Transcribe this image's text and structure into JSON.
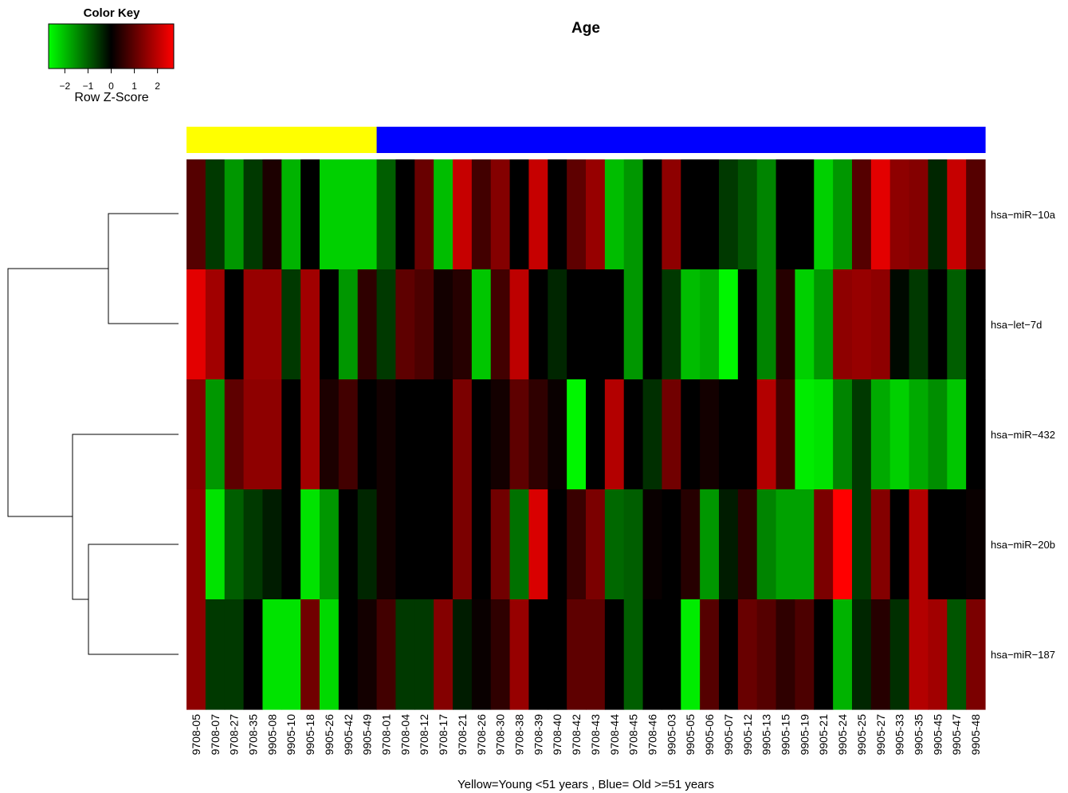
{
  "chart_data": {
    "type": "heatmap",
    "title": "Age",
    "xlabel": "Yellow=Young <51 years , Blue= Old >=51 years",
    "color_key": {
      "title": "Color Key",
      "label": "Row Z-Score",
      "range": [
        -2.7,
        2.7
      ],
      "ticks": [
        -2,
        -1,
        0,
        1,
        2
      ],
      "tick_labels": [
        "−2",
        "−1",
        "0",
        "1",
        "2"
      ],
      "low_color": "#00ff00",
      "mid_color": "#000000",
      "high_color": "#ff0000"
    },
    "group_colors": {
      "young": "#ffff00",
      "old": "#0000ff"
    },
    "columns": [
      "9708-05",
      "9708-07",
      "9708-27",
      "9708-35",
      "9905-08",
      "9905-10",
      "9905-18",
      "9905-26",
      "9905-42",
      "9905-49",
      "9708-01",
      "9708-04",
      "9708-12",
      "9708-17",
      "9708-21",
      "9708-26",
      "9708-30",
      "9708-38",
      "9708-39",
      "9708-40",
      "9708-42",
      "9708-43",
      "9708-44",
      "9708-45",
      "9708-46",
      "9905-03",
      "9905-05",
      "9905-06",
      "9905-07",
      "9905-12",
      "9905-13",
      "9905-15",
      "9905-19",
      "9905-21",
      "9905-24",
      "9905-25",
      "9905-27",
      "9905-33",
      "9905-35",
      "9905-45",
      "9905-47",
      "9905-48"
    ],
    "column_groups": [
      "young",
      "young",
      "young",
      "young",
      "young",
      "young",
      "young",
      "young",
      "young",
      "young",
      "old",
      "old",
      "old",
      "old",
      "old",
      "old",
      "old",
      "old",
      "old",
      "old",
      "old",
      "old",
      "old",
      "old",
      "old",
      "old",
      "old",
      "old",
      "old",
      "old",
      "old",
      "old",
      "old",
      "old",
      "old",
      "old",
      "old",
      "old",
      "old",
      "old",
      "old",
      "old"
    ],
    "rows": [
      "hsa−miR−10a",
      "hsa−let−7d",
      "hsa−miR−432",
      "hsa−miR−20b",
      "hsa−miR−187"
    ],
    "values": [
      [
        0.9,
        -0.6,
        -1.6,
        -0.6,
        0.3,
        -1.9,
        0.0,
        -2.2,
        -2.2,
        -2.2,
        -1.0,
        0.0,
        1.1,
        -2.0,
        2.1,
        0.7,
        1.4,
        0.0,
        2.1,
        0.0,
        1.0,
        1.6,
        -2.0,
        -1.6,
        0.0,
        1.5,
        0.0,
        0.0,
        -0.6,
        -0.9,
        -1.4,
        0.0,
        0.0,
        -2.2,
        -1.6,
        0.9,
        2.4,
        1.5,
        1.4,
        -0.4,
        2.1,
        0.9
      ],
      [
        2.4,
        1.7,
        0.0,
        1.6,
        1.6,
        -0.6,
        1.7,
        0.0,
        -1.6,
        0.5,
        -0.6,
        1.0,
        0.8,
        0.2,
        0.4,
        -2.1,
        0.7,
        2.0,
        0.0,
        -0.4,
        0.0,
        0.0,
        0.0,
        -1.6,
        0.0,
        -0.6,
        -2.0,
        -1.8,
        -2.6,
        0.0,
        -1.4,
        0.4,
        -2.2,
        -1.6,
        1.5,
        1.6,
        1.5,
        -0.1,
        -0.6,
        0.0,
        -1.0,
        0.0
      ],
      [
        1.4,
        -1.6,
        1.0,
        1.5,
        1.5,
        0.0,
        1.7,
        0.3,
        0.7,
        0.0,
        0.2,
        0.0,
        0.0,
        0.0,
        1.3,
        0.0,
        0.2,
        1.0,
        0.5,
        0.1,
        -2.6,
        0.0,
        1.9,
        0.0,
        -0.5,
        1.2,
        0.0,
        0.2,
        0.0,
        0.0,
        1.9,
        0.7,
        -2.5,
        -2.4,
        -1.4,
        -0.6,
        -1.8,
        -2.2,
        -1.8,
        -1.5,
        -2.1,
        0.0
      ],
      [
        1.5,
        -2.4,
        -1.0,
        -0.6,
        -0.3,
        0.0,
        -2.4,
        -1.6,
        0.0,
        -0.4,
        0.2,
        0.0,
        0.0,
        0.0,
        1.3,
        0.0,
        1.2,
        -1.2,
        2.3,
        0.0,
        0.6,
        1.3,
        -1.1,
        -1.0,
        0.1,
        0.0,
        0.4,
        -1.6,
        -0.3,
        0.5,
        -1.4,
        -1.7,
        -1.7,
        1.3,
        2.7,
        -0.6,
        1.4,
        0.0,
        1.9,
        0.0,
        0.0,
        0.1
      ],
      [
        1.5,
        -0.6,
        -0.6,
        0.0,
        -2.4,
        -2.4,
        1.2,
        -2.3,
        0.0,
        0.2,
        0.7,
        -0.6,
        -0.6,
        1.4,
        -0.3,
        0.1,
        0.5,
        1.6,
        0.0,
        0.0,
        1.0,
        1.0,
        0.0,
        -1.0,
        0.0,
        0.0,
        -2.5,
        0.9,
        0.0,
        1.1,
        0.9,
        0.5,
        0.8,
        0.0,
        -1.9,
        -0.4,
        0.4,
        -0.5,
        1.9,
        1.7,
        -0.9,
        1.3
      ]
    ],
    "dendrogram": {
      "groups": [
        [
          "hsa−miR−10a",
          "hsa−let−7d"
        ],
        [
          "hsa−miR−432",
          [
            "hsa−miR−20b",
            "hsa−miR−187"
          ]
        ]
      ]
    }
  }
}
